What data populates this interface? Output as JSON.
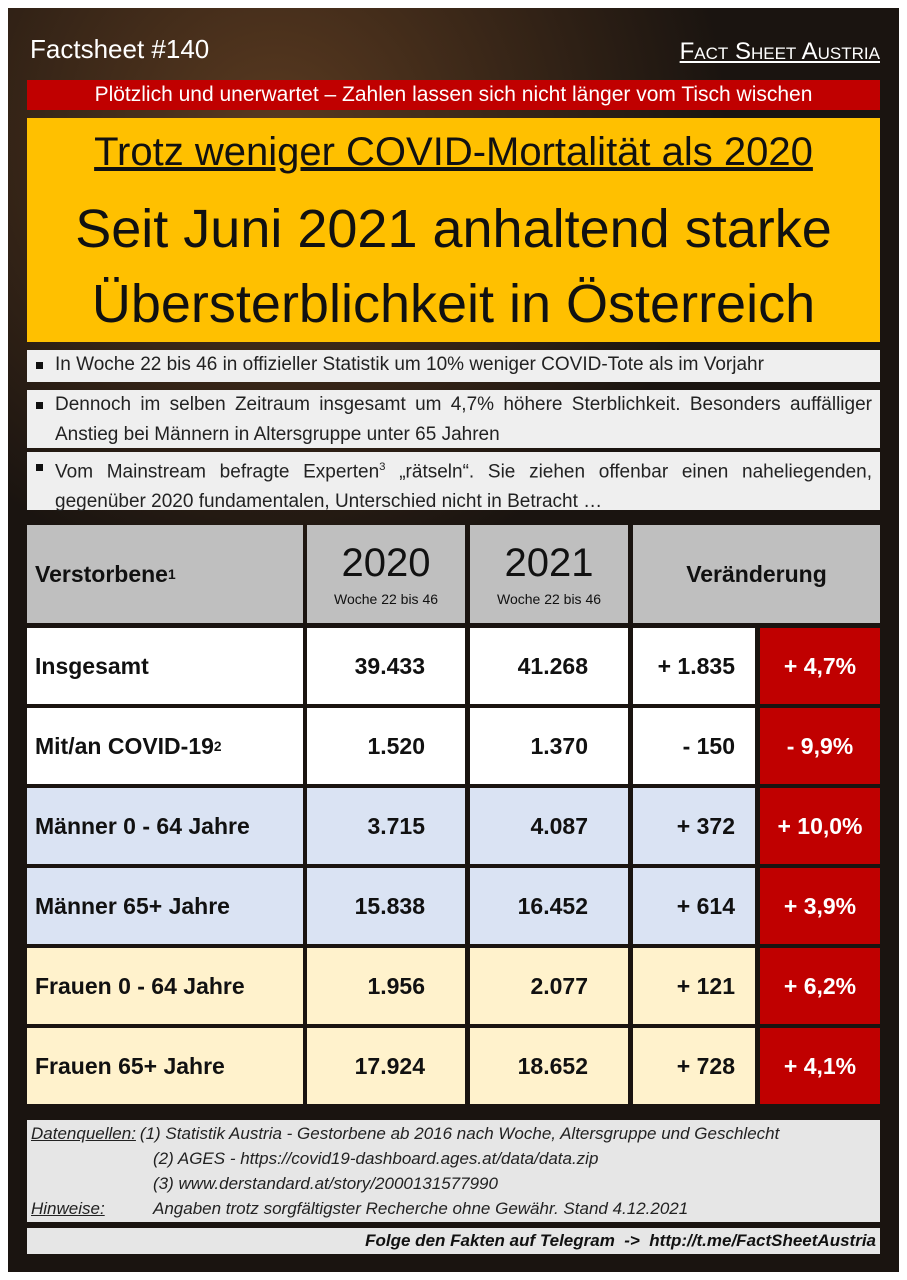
{
  "header": {
    "left": "Factsheet #140",
    "right": "Fact Sheet Austria"
  },
  "banner": "Plötzlich und unerwartet – Zahlen lassen sich nicht länger vom Tisch wischen",
  "headline": {
    "line1": "Trotz weniger COVID-Mortalität als 2020",
    "line2": "Seit Juni 2021 anhaltend starke",
    "line3": "Übersterblichkeit in Österreich"
  },
  "bullets": [
    {
      "text": "In Woche 22 bis 46 in offizieller Statistik um 10% weniger COVID-Tote als im Vorjahr"
    },
    {
      "text": "Dennoch im selben Zeitraum insgesamt um 4,7% höhere Sterblichkeit. Besonders auffälliger Anstieg bei Männern in Altersgruppe unter 65 Jahren"
    },
    {
      "text": "Vom Mainstream befragte Experten",
      "sup": "3",
      "rest": " „rätseln“. Sie ziehen offenbar einen naheliegenden, gegenüber 2020 fundamentalen, Unterschied nicht in Betracht …"
    }
  ],
  "table": {
    "header": {
      "label": "Verstorbene",
      "label_sup": "1",
      "col1": "2020",
      "col1_sub": "Woche 22 bis 46",
      "col2": "2021",
      "col2_sub": "Woche 22 bis 46",
      "change": "Veränderung"
    },
    "rows": [
      {
        "label": "Insgesamt",
        "v2020": "39.433",
        "v2021": "41.268",
        "change": "+ 1.835",
        "pct": "+ 4,7%"
      },
      {
        "label": "Mit/an COVID-19",
        "sup": "2",
        "v2020": "1.520",
        "v2021": "1.370",
        "change": "- 150",
        "pct": "- 9,9%"
      },
      {
        "label": "Männer 0 - 64 Jahre",
        "v2020": "3.715",
        "v2021": "4.087",
        "change": "+ 372",
        "pct": "+ 10,0%"
      },
      {
        "label": "Männer 65+ Jahre",
        "v2020": "15.838",
        "v2021": "16.452",
        "change": "+ 614",
        "pct": "+ 3,9%"
      },
      {
        "label": "Frauen 0 - 64 Jahre",
        "v2020": "1.956",
        "v2021": "2.077",
        "change": "+ 121",
        "pct": "+ 6,2%"
      },
      {
        "label": "Frauen 65+ Jahre",
        "v2020": "17.924",
        "v2021": "18.652",
        "change": "+ 728",
        "pct": "+ 4,1%"
      }
    ]
  },
  "footer": {
    "sources_label": "Datenquellen:",
    "sources": [
      "(1) Statistik Austria - Gestorbene ab 2016 nach Woche, Altersgruppe und Geschlecht",
      "(2) AGES - https://covid19-dashboard.ages.at/data/data.zip",
      "(3) www.derstandard.at/story/2000131577990"
    ],
    "notes_label": "Hinweise:",
    "notes": "Angaben trotz sorgfältigster Recherche ohne Gewähr. Stand 4.12.2021",
    "telegram": "Folge den Fakten auf Telegram  ->  http://t.me/FactSheetAustria"
  }
}
